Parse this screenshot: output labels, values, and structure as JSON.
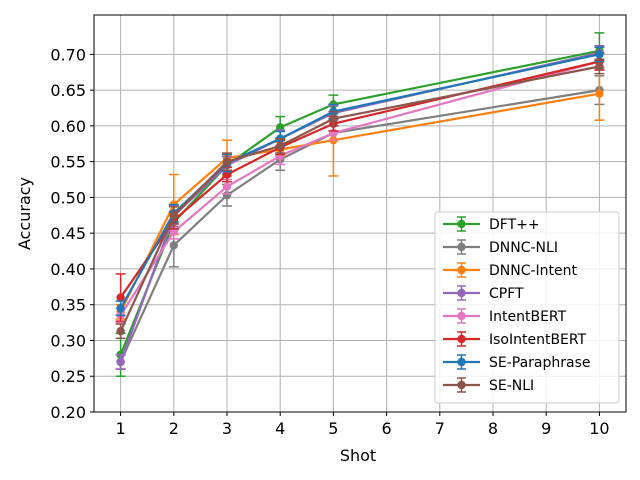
{
  "chart_data": {
    "type": "line",
    "title": "",
    "xlabel": "Shot",
    "ylabel": "Accuracy",
    "x": [
      1,
      2,
      3,
      4,
      5,
      10
    ],
    "xticks": [
      "1",
      "2",
      "3",
      "4",
      "5",
      "6",
      "7",
      "8",
      "9",
      "10"
    ],
    "yticks": [
      "0.20",
      "0.25",
      "0.30",
      "0.35",
      "0.40",
      "0.45",
      "0.50",
      "0.55",
      "0.60",
      "0.65",
      "0.70"
    ],
    "xlim": [
      0.5,
      10.5
    ],
    "ylim": [
      0.2,
      0.755
    ],
    "grid": true,
    "legend_position": "lower-right",
    "series": [
      {
        "name": "DFT++",
        "color": "#2ca02c",
        "values": [
          0.28,
          0.465,
          0.545,
          0.598,
          0.63,
          0.705
        ],
        "errors": [
          0.03,
          0.01,
          0.015,
          0.015,
          0.013,
          0.025
        ]
      },
      {
        "name": "DNNC-NLI",
        "color": "#7f7f7f",
        "values": [
          0.27,
          0.433,
          0.503,
          0.553,
          0.59,
          0.65
        ],
        "errors": [
          0.01,
          0.03,
          0.015,
          0.015,
          0.01,
          0.02
        ]
      },
      {
        "name": "DNNC-Intent",
        "color": "#ff7f0e",
        "values": [
          0.34,
          0.49,
          0.555,
          0.567,
          0.58,
          0.645
        ],
        "errors": [
          0.01,
          0.042,
          0.025,
          0.01,
          0.05,
          0.037
        ]
      },
      {
        "name": "CPFT",
        "color": "#9467bd",
        "values": [
          0.27,
          0.474,
          0.545,
          0.582,
          0.618,
          0.702
        ],
        "errors": [
          0.01,
          0.015,
          0.012,
          0.012,
          0.01,
          0.01
        ]
      },
      {
        "name": "IntentBERT",
        "color": "#e377c2",
        "values": [
          0.335,
          0.452,
          0.515,
          0.558,
          0.59,
          0.69
        ],
        "errors": [
          0.01,
          0.01,
          0.01,
          0.012,
          0.01,
          0.01
        ]
      },
      {
        "name": "IsoIntentBERT",
        "color": "#d62728",
        "values": [
          0.36,
          0.468,
          0.532,
          0.57,
          0.603,
          0.69
        ],
        "errors": [
          0.033,
          0.012,
          0.01,
          0.01,
          0.01,
          0.012
        ]
      },
      {
        "name": "SE-Paraphrase",
        "color": "#1f77b4",
        "values": [
          0.345,
          0.478,
          0.548,
          0.582,
          0.62,
          0.7
        ],
        "errors": [
          0.01,
          0.012,
          0.012,
          0.01,
          0.01,
          0.01
        ]
      },
      {
        "name": "SE-NLI",
        "color": "#8c564b",
        "values": [
          0.313,
          0.475,
          0.55,
          0.572,
          0.61,
          0.683
        ],
        "errors": [
          0.01,
          0.012,
          0.012,
          0.01,
          0.01,
          0.01
        ]
      }
    ]
  }
}
